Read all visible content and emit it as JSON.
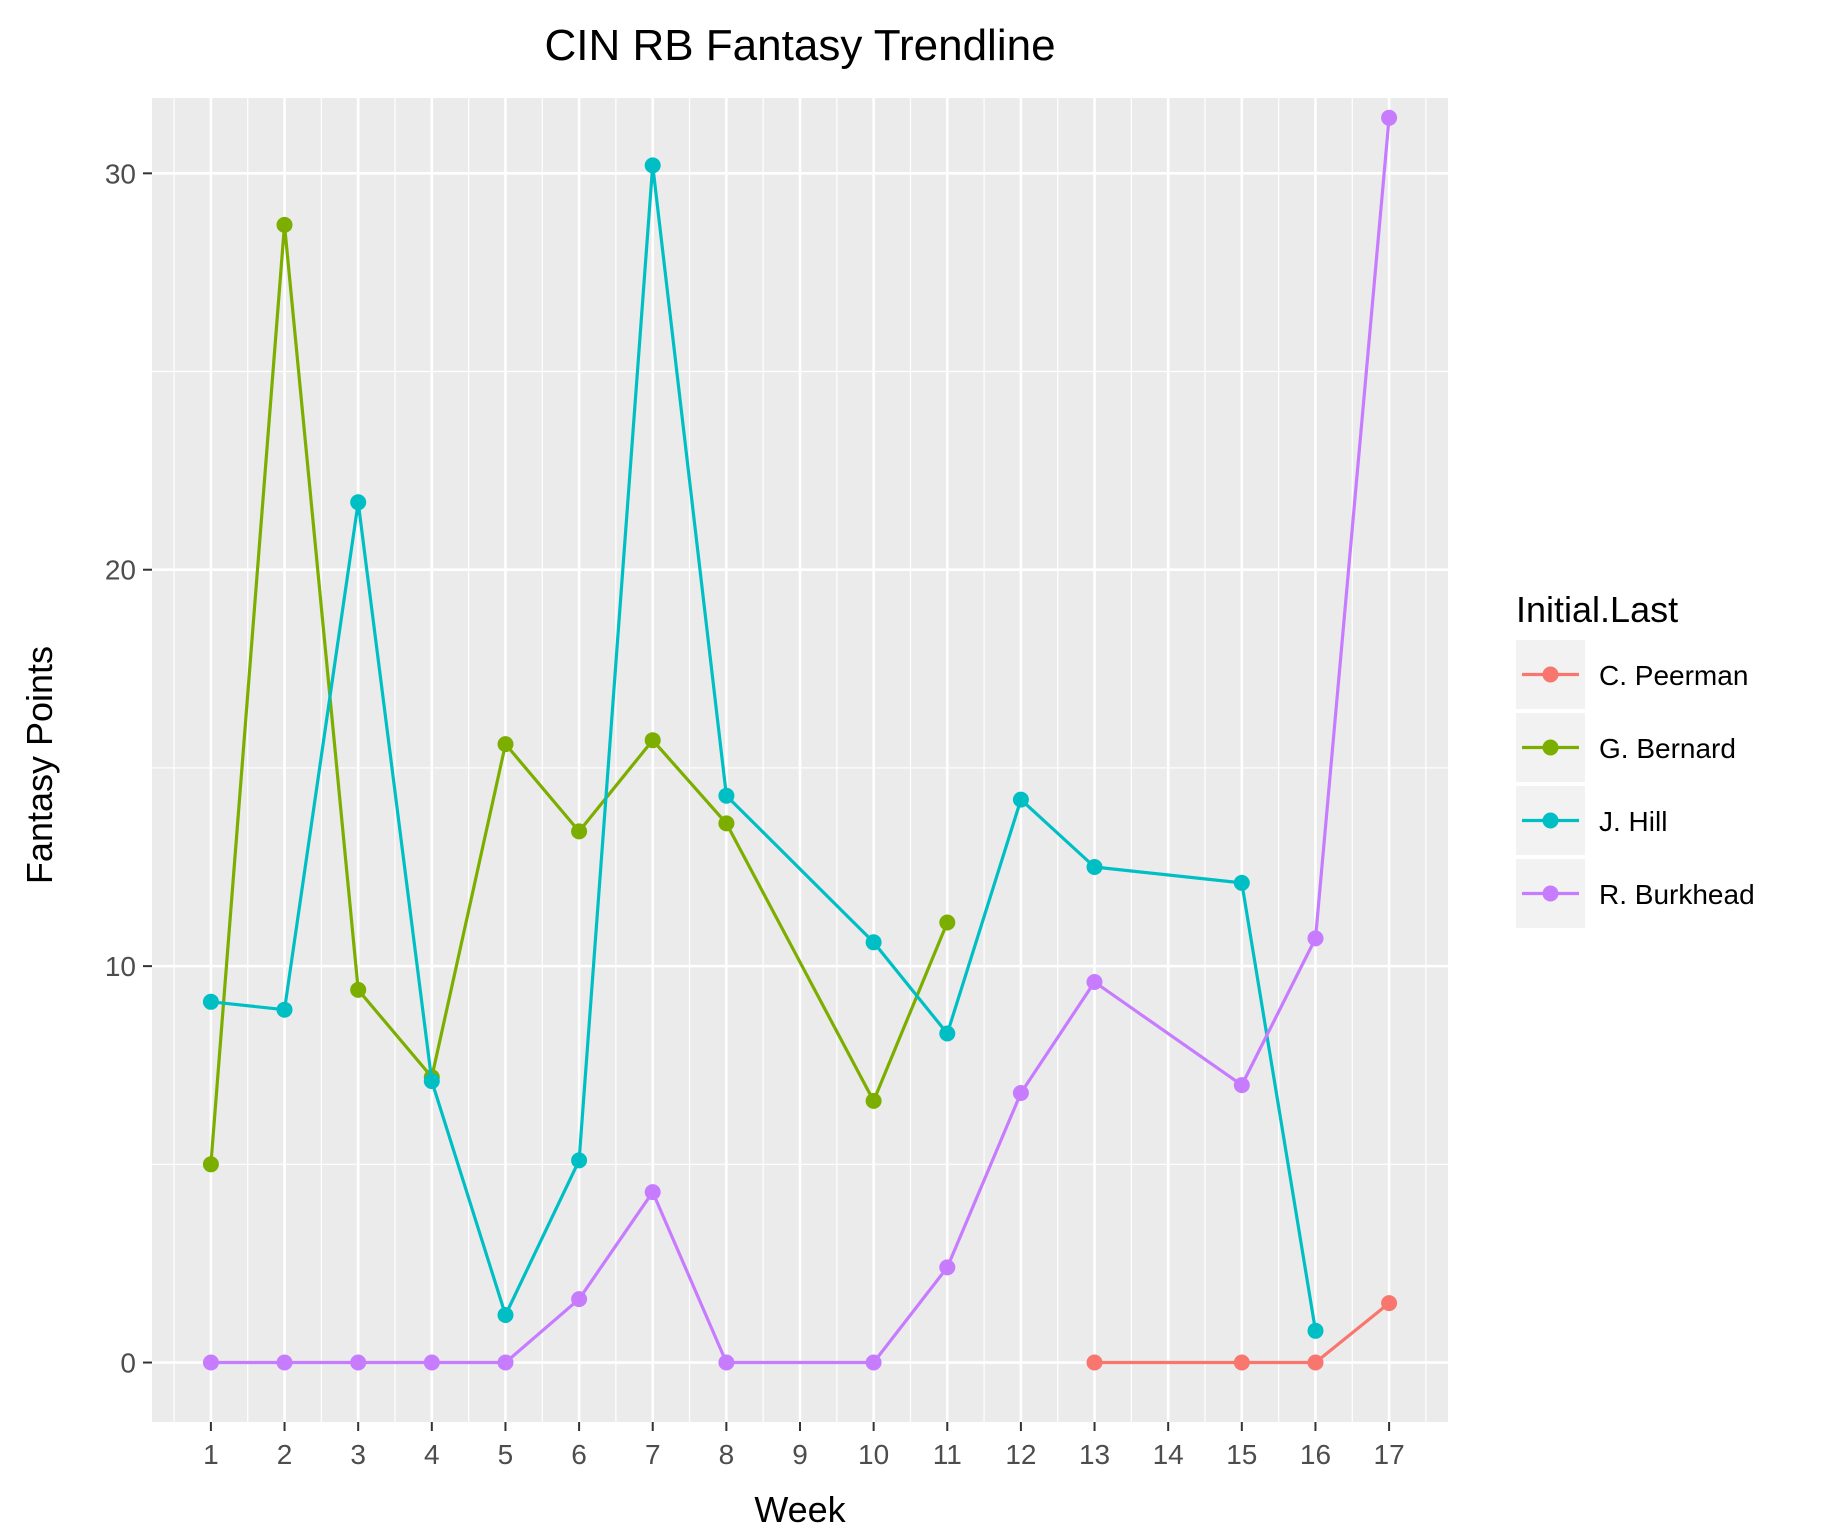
{
  "chart_data": {
    "type": "line",
    "title": "CIN RB Fantasy Trendline",
    "xlabel": "Week",
    "ylabel": "Fantasy Points",
    "x_ticks": [
      "1",
      "2",
      "3",
      "4",
      "5",
      "6",
      "7",
      "8",
      "9",
      "10",
      "11",
      "12",
      "13",
      "14",
      "15",
      "16",
      "17"
    ],
    "y_ticks": [
      0,
      10,
      20,
      30
    ],
    "xlim": [
      0.2,
      17.8
    ],
    "ylim": [
      -1.5,
      31.9
    ],
    "grid": true,
    "legend": {
      "title": "Initial.Last",
      "position": "right"
    },
    "series": [
      {
        "name": "C. Peerman",
        "color": "#F8766D",
        "points": [
          [
            13,
            0
          ],
          [
            15,
            0
          ],
          [
            16,
            0
          ],
          [
            17,
            1.5
          ]
        ]
      },
      {
        "name": "G. Bernard",
        "color": "#7CAE00",
        "points": [
          [
            1,
            5
          ],
          [
            2,
            28.7
          ],
          [
            3,
            9.4
          ],
          [
            4,
            7.2
          ],
          [
            5,
            15.6
          ],
          [
            6,
            13.4
          ],
          [
            7,
            15.7
          ],
          [
            8,
            13.6
          ],
          [
            10,
            6.6
          ],
          [
            11,
            11.1
          ]
        ]
      },
      {
        "name": "J. Hill",
        "color": "#00BFC4",
        "points": [
          [
            1,
            9.1
          ],
          [
            2,
            8.9
          ],
          [
            3,
            21.7
          ],
          [
            4,
            7.1
          ],
          [
            5,
            1.2
          ],
          [
            6,
            5.1
          ],
          [
            7,
            30.2
          ],
          [
            8,
            14.3
          ],
          [
            10,
            10.6
          ],
          [
            11,
            8.3
          ],
          [
            12,
            14.2
          ],
          [
            13,
            12.5
          ],
          [
            15,
            12.1
          ],
          [
            16,
            0.8
          ]
        ]
      },
      {
        "name": "R. Burkhead",
        "color": "#C77CFF",
        "points": [
          [
            1,
            0
          ],
          [
            2,
            0
          ],
          [
            3,
            0
          ],
          [
            4,
            0
          ],
          [
            5,
            0
          ],
          [
            6,
            1.6
          ],
          [
            7,
            4.3
          ],
          [
            8,
            0
          ],
          [
            10,
            0
          ],
          [
            11,
            2.4
          ],
          [
            12,
            6.8
          ],
          [
            13,
            9.6
          ],
          [
            15,
            7
          ],
          [
            16,
            10.7
          ],
          [
            17,
            31.4
          ]
        ]
      }
    ]
  }
}
